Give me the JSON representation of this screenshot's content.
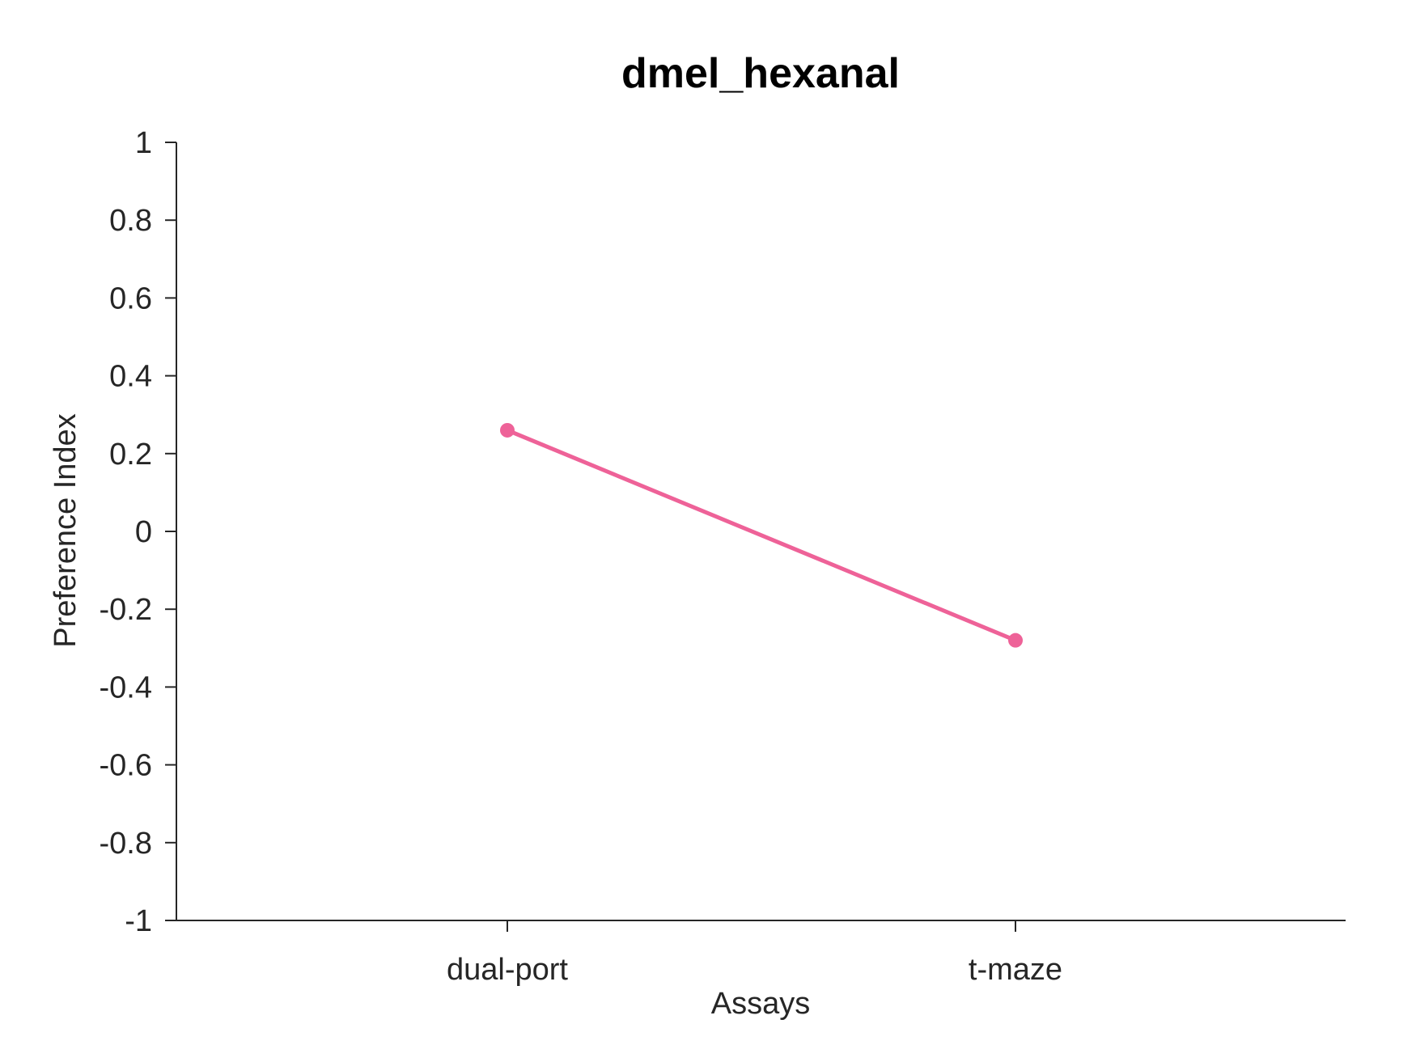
{
  "chart_data": {
    "type": "line",
    "title": "dmel_hexanal",
    "xlabel": "Assays",
    "ylabel": "Preference Index",
    "categories": [
      "dual-port",
      "t-maze"
    ],
    "series": [
      {
        "values": [
          0.26,
          -0.28
        ],
        "color": "#ee6298"
      }
    ],
    "ylim": [
      -1,
      1
    ],
    "yticks": [
      1,
      0.8,
      0.6,
      0.4,
      0.2,
      0,
      -0.2,
      -0.4,
      -0.6,
      -0.8,
      -1
    ],
    "ytick_labels": [
      "1",
      "0.8",
      "0.6",
      "0.4",
      "0.2",
      "0",
      "-0.2",
      "-0.4",
      "-0.6",
      "-0.8",
      "-1"
    ],
    "grid": false,
    "legend": "none"
  }
}
